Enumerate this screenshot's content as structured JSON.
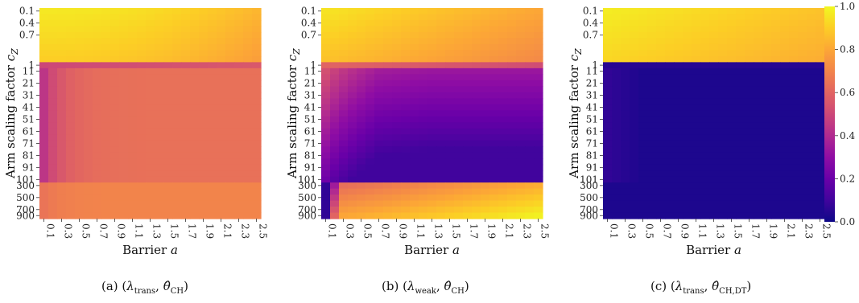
{
  "colorbar": {
    "colormap": "plasma",
    "range": [
      0.0,
      1.0
    ],
    "tick_labels": [
      "0.0",
      "0.2",
      "0.4",
      "0.6",
      "0.8",
      "1.0"
    ]
  },
  "chart_data": [
    {
      "type": "heatmap",
      "panel": "a",
      "caption_prefix": "(a) ",
      "caption_math": "(λ_trans, θ̂_CH)",
      "xlabel": "Barrier a",
      "ylabel": "Arm scaling factor c_Z",
      "x_tick_labels": [
        "0.1",
        "0.3",
        "0.5",
        "0.7",
        "0.9",
        "1.1",
        "1.3",
        "1.5",
        "1.7",
        "1.9",
        "2.1",
        "2.3",
        "2.5"
      ],
      "y_tick_labels": [
        "0.1",
        "0.4",
        "0.7",
        "1",
        "11",
        "21",
        "31",
        "41",
        "51",
        "61",
        "71",
        "81",
        "91",
        "101",
        "300",
        "500",
        "700",
        "900"
      ],
      "x_count": 25,
      "y_count": 35,
      "value_range": [
        0,
        1
      ],
      "regions": [
        {
          "rows": "0.1 to 0.9",
          "approx_value": 0.9,
          "note": "yellow, slightly lower toward large a"
        },
        {
          "rows": "1",
          "approx_value": 0.55
        },
        {
          "rows": "11 to 101",
          "approx_value": 0.63,
          "note": "lower (~0.45) at small a"
        },
        {
          "rows": "300 to 900",
          "approx_value": 0.7
        }
      ]
    },
    {
      "type": "heatmap",
      "panel": "b",
      "caption_prefix": "(b) ",
      "caption_math": "(λ_weak, θ̂_CH)",
      "xlabel": "Barrier a",
      "ylabel": "Arm scaling factor c_Z",
      "x_tick_labels": [
        "0.1",
        "0.3",
        "0.5",
        "0.7",
        "0.9",
        "1.1",
        "1.3",
        "1.5",
        "1.7",
        "1.9",
        "2.1",
        "2.3",
        "2.5"
      ],
      "y_tick_labels": [
        "0.1",
        "0.4",
        "0.7",
        "1",
        "11",
        "21",
        "31",
        "41",
        "51",
        "61",
        "71",
        "81",
        "91",
        "101",
        "300",
        "500",
        "700",
        "900"
      ],
      "x_count": 25,
      "y_count": 35,
      "value_range": [
        0,
        1
      ],
      "regions": [
        {
          "rows": "0.1 to 0.9",
          "approx_value": 0.88
        },
        {
          "rows": "11 to 101",
          "approx_value": 0.2,
          "note": "violet, ~0.5 near row 11"
        },
        {
          "rows": "300 to 900",
          "approx_value": 0.85,
          "note": "yellow-orange, dark (~0.05) at a = 0.1"
        }
      ]
    },
    {
      "type": "heatmap",
      "panel": "c",
      "caption_prefix": "(c) ",
      "caption_math": "(λ_trans, θ̂_CH,DT)",
      "xlabel": "Barrier a",
      "ylabel": "Arm scaling factor c_Z",
      "x_tick_labels": [
        "0.1",
        "0.3",
        "0.5",
        "0.7",
        "0.9",
        "1.1",
        "1.3",
        "1.5",
        "1.7",
        "1.9",
        "2.1",
        "2.3",
        "2.5"
      ],
      "y_tick_labels": [
        "0.1",
        "0.4",
        "0.7",
        "1",
        "11",
        "21",
        "31",
        "41",
        "51",
        "61",
        "71",
        "81",
        "91",
        "101",
        "300",
        "500",
        "700",
        "900"
      ],
      "x_count": 25,
      "y_count": 35,
      "value_range": [
        0,
        1
      ],
      "regions": [
        {
          "rows": "0.1 to 0.9",
          "approx_value": 0.9
        },
        {
          "rows": "1 to 900",
          "approx_value": 0.03,
          "note": "near 0 (dark blue)"
        }
      ]
    }
  ]
}
